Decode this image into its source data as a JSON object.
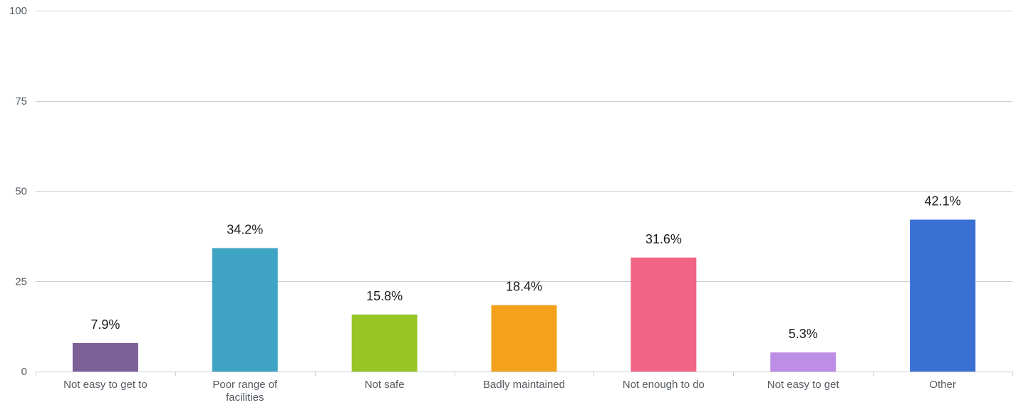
{
  "chart_data": {
    "type": "bar",
    "categories": [
      "Not easy to get to",
      "Poor range of facilities",
      "Not safe",
      "Badly maintained",
      "Not enough to do",
      "Not easy to get",
      "Other"
    ],
    "values": [
      7.9,
      34.2,
      15.8,
      18.4,
      31.6,
      5.3,
      42.1
    ],
    "data_labels": [
      "7.9%",
      "34.2%",
      "15.8%",
      "18.4%",
      "31.6%",
      "5.3%",
      "42.1%"
    ],
    "colors": [
      "#7b5f96",
      "#3fa3c4",
      "#97c624",
      "#f4a21b",
      "#f06585",
      "#bd8ee5",
      "#3a6fd4"
    ],
    "ylim": [
      0,
      100
    ],
    "yticks": [
      0,
      25,
      50,
      75,
      100
    ],
    "grid": true,
    "legend": "none"
  }
}
